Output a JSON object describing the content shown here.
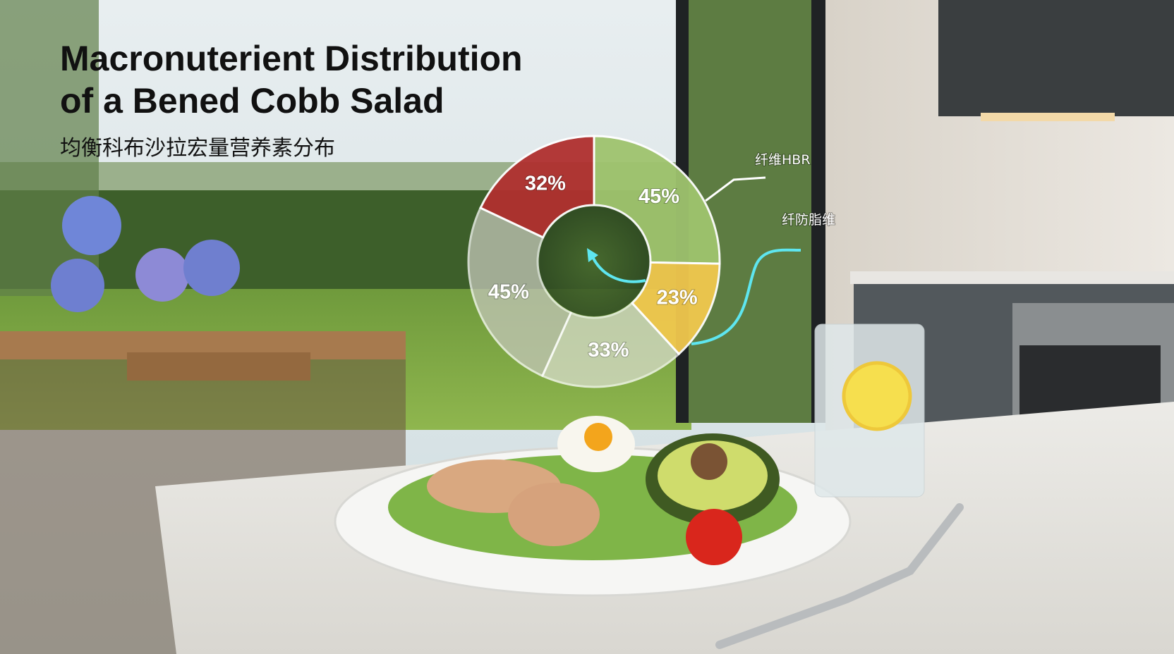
{
  "chart_data": {
    "type": "pie",
    "donut": true,
    "title": [
      "Macronuterient Distribution",
      "of a Bened Cobb Salad"
    ],
    "subtitle": "均衡科布沙拉宏量营养素分布",
    "values": [
      45,
      23,
      33,
      45,
      32
    ],
    "value_labels": [
      "45%",
      "23%",
      "33%",
      "45%",
      "32%"
    ],
    "colors": [
      "#9fc46e",
      "#f1c84e",
      "#d8dccb",
      "#c3c6b8",
      "#b0302f"
    ],
    "annotations": [
      "纤维HBR",
      "纤防脂维"
    ]
  }
}
